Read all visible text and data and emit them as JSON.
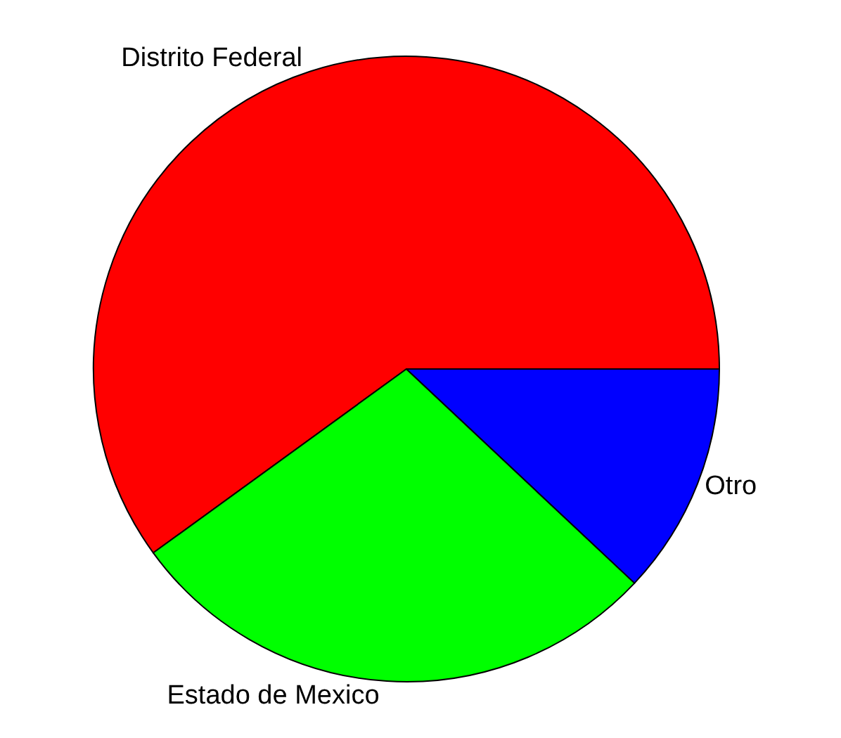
{
  "chart_data": {
    "type": "pie",
    "categories": [
      "Distrito Federal",
      "Estado de Mexico",
      "Otro"
    ],
    "values": [
      60,
      28,
      12
    ],
    "colors": [
      "#ff0000",
      "#00ff00",
      "#0000ff"
    ],
    "legend": false
  }
}
